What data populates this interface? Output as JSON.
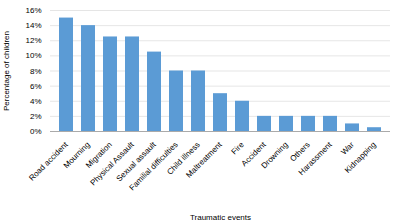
{
  "chart_data": {
    "type": "bar",
    "categories": [
      "Road accident",
      "Mourning",
      "Migration",
      "Physical Assault",
      "Sexual assault",
      "Familial difficulties",
      "Child illness",
      "Maltreatment",
      "Fire",
      "Accident",
      "Drowning",
      "Others",
      "Harassment",
      "War",
      "Kidnapping"
    ],
    "values": [
      15.0,
      14.0,
      12.5,
      12.5,
      10.5,
      8.0,
      8.0,
      5.0,
      4.0,
      2.0,
      2.0,
      2.0,
      2.0,
      1.0,
      0.5
    ],
    "color": "#5B9BD5",
    "xlabel": "Traumatic events",
    "ylabel": "Percentage of children",
    "ylim": [
      0,
      16
    ],
    "yticks": [
      {
        "value": 0,
        "label": "0%"
      },
      {
        "value": 2,
        "label": "2%"
      },
      {
        "value": 4,
        "label": "4%"
      },
      {
        "value": 6,
        "label": "6%"
      },
      {
        "value": 8,
        "label": "8%"
      },
      {
        "value": 10,
        "label": "10%"
      },
      {
        "value": 12,
        "label": "12%"
      },
      {
        "value": 14,
        "label": "14%"
      },
      {
        "value": 16,
        "label": "16%"
      }
    ],
    "grid": true
  }
}
